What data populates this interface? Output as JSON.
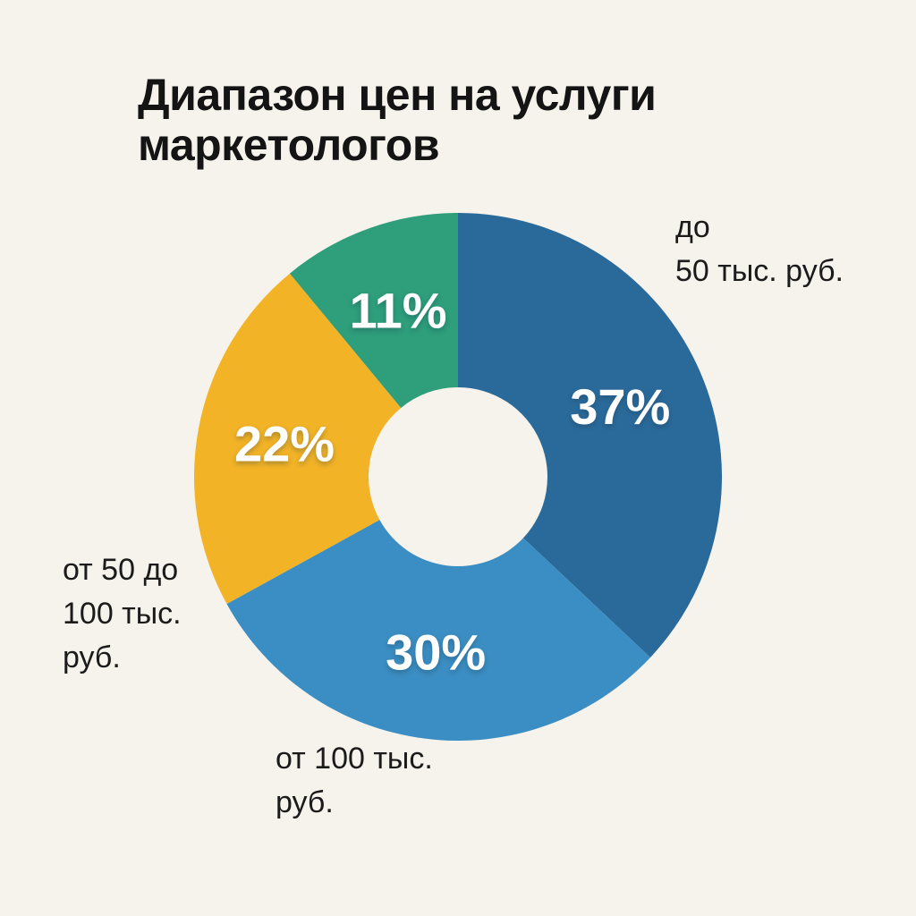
{
  "page": {
    "background_color": "#f6f3ec",
    "text_color": "#141414"
  },
  "title": "Диапазон цен на услуги маркетологов",
  "chart_data": {
    "type": "pie",
    "subtype": "donut",
    "title": "Диапазон цен на услуги маркетологов",
    "start_angle_deg": 0,
    "direction": "clockwise",
    "inner_radius_ratio": 0.34,
    "legend": "none",
    "value_label_color": "#ffffff",
    "segments": [
      {
        "label": "до 50 тыс. руб.",
        "value": 37,
        "pct_label": "37%",
        "color": "#2a6a9a"
      },
      {
        "label": "от 100 тыс. руб.",
        "value": 30,
        "pct_label": "30%",
        "color": "#3b8ec3"
      },
      {
        "label": "от 50 до 100 тыс. руб.",
        "value": 22,
        "pct_label": "22%",
        "color": "#f2b327"
      },
      {
        "label": "",
        "value": 11,
        "pct_label": "11%",
        "color": "#2e9e7b"
      }
    ],
    "external_labels": [
      {
        "segment": "до 50 тыс. руб.",
        "lines": [
          "до",
          "50 тыс. руб."
        ]
      },
      {
        "segment": "от 50 до 100 тыс. руб.",
        "lines": [
          "от 50 до",
          "100 тыс.",
          "руб."
        ]
      },
      {
        "segment": "от 100 тыс. руб.",
        "lines": [
          "от 100 тыс.",
          "руб."
        ]
      }
    ]
  }
}
